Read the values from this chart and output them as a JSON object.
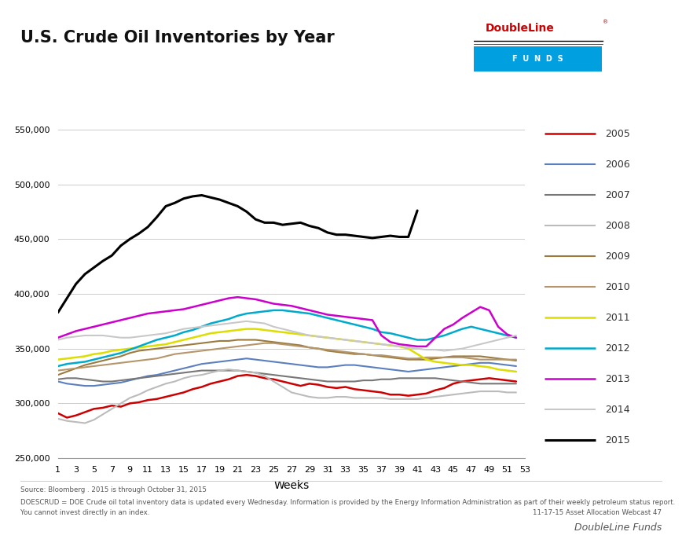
{
  "title": "U.S. Crude Oil Inventories by Year",
  "xlabel": "Weeks",
  "xlim": [
    1,
    53
  ],
  "ylim": [
    250000,
    560000
  ],
  "yticks": [
    250000,
    300000,
    350000,
    400000,
    450000,
    500000,
    550000
  ],
  "xticks": [
    1,
    3,
    5,
    7,
    9,
    11,
    13,
    15,
    17,
    19,
    21,
    23,
    25,
    27,
    29,
    31,
    33,
    35,
    37,
    39,
    41,
    43,
    45,
    47,
    49,
    51,
    53
  ],
  "background_color": "#ffffff",
  "grid_color": "#cccccc",
  "footnote1": "Source: Bloomberg . 2015 is through October 31, 2015",
  "footnote2": "DOESCRUD = DOE Crude oil total inventory data is updated every Wednesday. Information is provided by the Energy Information Administration as part of their weekly petroleum status report.",
  "footnote3": "You cannot invest directly in an index.",
  "footnote_right": "11-17-15 Asset Allocation Webcast 47",
  "bottom_right": "DoubleLine Funds",
  "series": {
    "2005": {
      "color": "#cc0000",
      "linewidth": 1.8,
      "data": [
        291,
        287,
        289,
        292,
        295,
        296,
        298,
        297,
        300,
        301,
        303,
        304,
        306,
        308,
        310,
        313,
        315,
        318,
        320,
        322,
        325,
        326,
        325,
        323,
        322,
        320,
        318,
        316,
        318,
        317,
        315,
        314,
        315,
        313,
        312,
        311,
        310,
        308,
        308,
        307,
        308,
        309,
        312,
        314,
        318,
        320,
        321,
        322,
        323,
        322,
        321,
        320
      ]
    },
    "2006": {
      "color": "#5a7fbf",
      "linewidth": 1.5,
      "data": [
        320,
        318,
        317,
        316,
        316,
        317,
        318,
        319,
        321,
        323,
        325,
        326,
        328,
        330,
        332,
        334,
        336,
        337,
        338,
        339,
        340,
        341,
        340,
        339,
        338,
        337,
        336,
        335,
        334,
        333,
        333,
        334,
        335,
        335,
        334,
        333,
        332,
        331,
        330,
        329,
        330,
        331,
        332,
        333,
        334,
        335,
        336,
        337,
        337,
        336,
        335,
        334
      ]
    },
    "2007": {
      "color": "#777777",
      "linewidth": 1.5,
      "data": [
        322,
        323,
        323,
        322,
        321,
        320,
        320,
        321,
        322,
        323,
        324,
        325,
        326,
        327,
        328,
        329,
        330,
        330,
        330,
        330,
        330,
        329,
        328,
        327,
        326,
        325,
        324,
        323,
        322,
        321,
        320,
        320,
        320,
        320,
        321,
        321,
        322,
        322,
        323,
        323,
        323,
        323,
        323,
        322,
        321,
        320,
        319,
        318,
        318,
        318,
        318,
        318
      ]
    },
    "2008": {
      "color": "#bbbbbb",
      "linewidth": 1.5,
      "data": [
        286,
        284,
        283,
        282,
        285,
        290,
        295,
        300,
        305,
        308,
        312,
        315,
        318,
        320,
        323,
        325,
        326,
        328,
        330,
        331,
        330,
        329,
        328,
        325,
        320,
        315,
        310,
        308,
        306,
        305,
        305,
        306,
        306,
        305,
        305,
        305,
        305,
        304,
        304,
        304,
        304,
        305,
        306,
        307,
        308,
        309,
        310,
        311,
        311,
        311,
        310,
        310
      ]
    },
    "2009": {
      "color": "#9b7a3e",
      "linewidth": 1.5,
      "data": [
        326,
        329,
        332,
        335,
        337,
        339,
        341,
        343,
        346,
        348,
        349,
        350,
        351,
        352,
        353,
        354,
        355,
        356,
        357,
        357,
        358,
        358,
        358,
        357,
        356,
        355,
        354,
        353,
        351,
        350,
        348,
        347,
        346,
        345,
        345,
        344,
        343,
        342,
        341,
        340,
        340,
        340,
        341,
        342,
        343,
        343,
        343,
        343,
        342,
        341,
        340,
        339
      ]
    },
    "2010": {
      "color": "#b5956a",
      "linewidth": 1.5,
      "data": [
        330,
        331,
        332,
        333,
        334,
        335,
        336,
        337,
        338,
        339,
        340,
        341,
        343,
        345,
        346,
        347,
        348,
        349,
        350,
        351,
        352,
        353,
        354,
        355,
        355,
        354,
        353,
        352,
        351,
        350,
        349,
        348,
        347,
        346,
        345,
        344,
        344,
        343,
        342,
        341,
        341,
        342,
        342,
        342,
        342,
        342,
        341,
        340,
        340,
        340,
        340,
        340
      ]
    },
    "2011": {
      "color": "#dddd00",
      "linewidth": 1.8,
      "data": [
        340,
        341,
        342,
        343,
        345,
        346,
        348,
        349,
        350,
        351,
        352,
        353,
        354,
        356,
        358,
        360,
        362,
        364,
        365,
        366,
        367,
        368,
        368,
        367,
        366,
        365,
        364,
        363,
        362,
        361,
        360,
        359,
        358,
        357,
        356,
        355,
        354,
        353,
        352,
        350,
        345,
        340,
        338,
        337,
        336,
        335,
        335,
        334,
        333,
        331,
        330,
        329
      ]
    },
    "2012": {
      "color": "#00aacc",
      "linewidth": 1.8,
      "data": [
        334,
        336,
        337,
        338,
        340,
        342,
        344,
        346,
        349,
        352,
        355,
        358,
        360,
        362,
        365,
        367,
        370,
        373,
        375,
        377,
        380,
        382,
        383,
        384,
        385,
        385,
        384,
        383,
        382,
        380,
        378,
        376,
        374,
        372,
        370,
        368,
        365,
        364,
        362,
        360,
        358,
        358,
        360,
        362,
        365,
        368,
        370,
        368,
        366,
        364,
        362,
        360
      ]
    },
    "2013": {
      "color": "#cc00cc",
      "linewidth": 1.8,
      "data": [
        360,
        363,
        366,
        368,
        370,
        372,
        374,
        376,
        378,
        380,
        382,
        383,
        384,
        385,
        386,
        388,
        390,
        392,
        394,
        396,
        397,
        396,
        395,
        393,
        391,
        390,
        389,
        387,
        385,
        383,
        381,
        380,
        379,
        378,
        377,
        376,
        362,
        356,
        354,
        353,
        352,
        352,
        360,
        368,
        372,
        378,
        383,
        388,
        385,
        370,
        363,
        360
      ]
    },
    "2014": {
      "color": "#c8c8c8",
      "linewidth": 1.5,
      "data": [
        358,
        360,
        361,
        362,
        362,
        362,
        361,
        360,
        360,
        361,
        362,
        363,
        364,
        366,
        368,
        369,
        370,
        371,
        372,
        373,
        374,
        375,
        374,
        373,
        370,
        368,
        366,
        364,
        362,
        361,
        360,
        359,
        358,
        357,
        356,
        355,
        354,
        353,
        352,
        351,
        350,
        349,
        349,
        348,
        349,
        350,
        352,
        354,
        356,
        358,
        360,
        362
      ]
    },
    "2015": {
      "color": "#000000",
      "linewidth": 2.2,
      "data": [
        383,
        396,
        409,
        418,
        424,
        430,
        435,
        444,
        450,
        455,
        461,
        470,
        480,
        483,
        487,
        489,
        490,
        488,
        486,
        483,
        480,
        475,
        468,
        465,
        465,
        463,
        464,
        465,
        462,
        460,
        456,
        454,
        454,
        453,
        452,
        451,
        452,
        453,
        452,
        452,
        476
      ]
    }
  }
}
